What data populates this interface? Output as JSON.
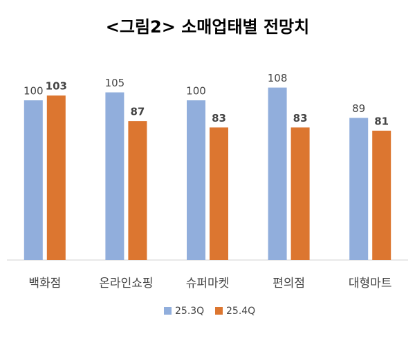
{
  "chart_data": {
    "type": "bar",
    "title": "<그림2> 소매업태별 전망치",
    "categories": [
      "백화점",
      "온라인쇼핑",
      "슈퍼마켓",
      "편의점",
      "대형마트"
    ],
    "series": [
      {
        "name": "25.3Q",
        "color": "#91aedc",
        "values": [
          100,
          105,
          100,
          108,
          89
        ]
      },
      {
        "name": "25.4Q",
        "color": "#dc7630",
        "values": [
          103,
          87,
          83,
          83,
          81
        ]
      }
    ],
    "ylim": [
      0,
      110
    ],
    "legend": "bottom"
  }
}
